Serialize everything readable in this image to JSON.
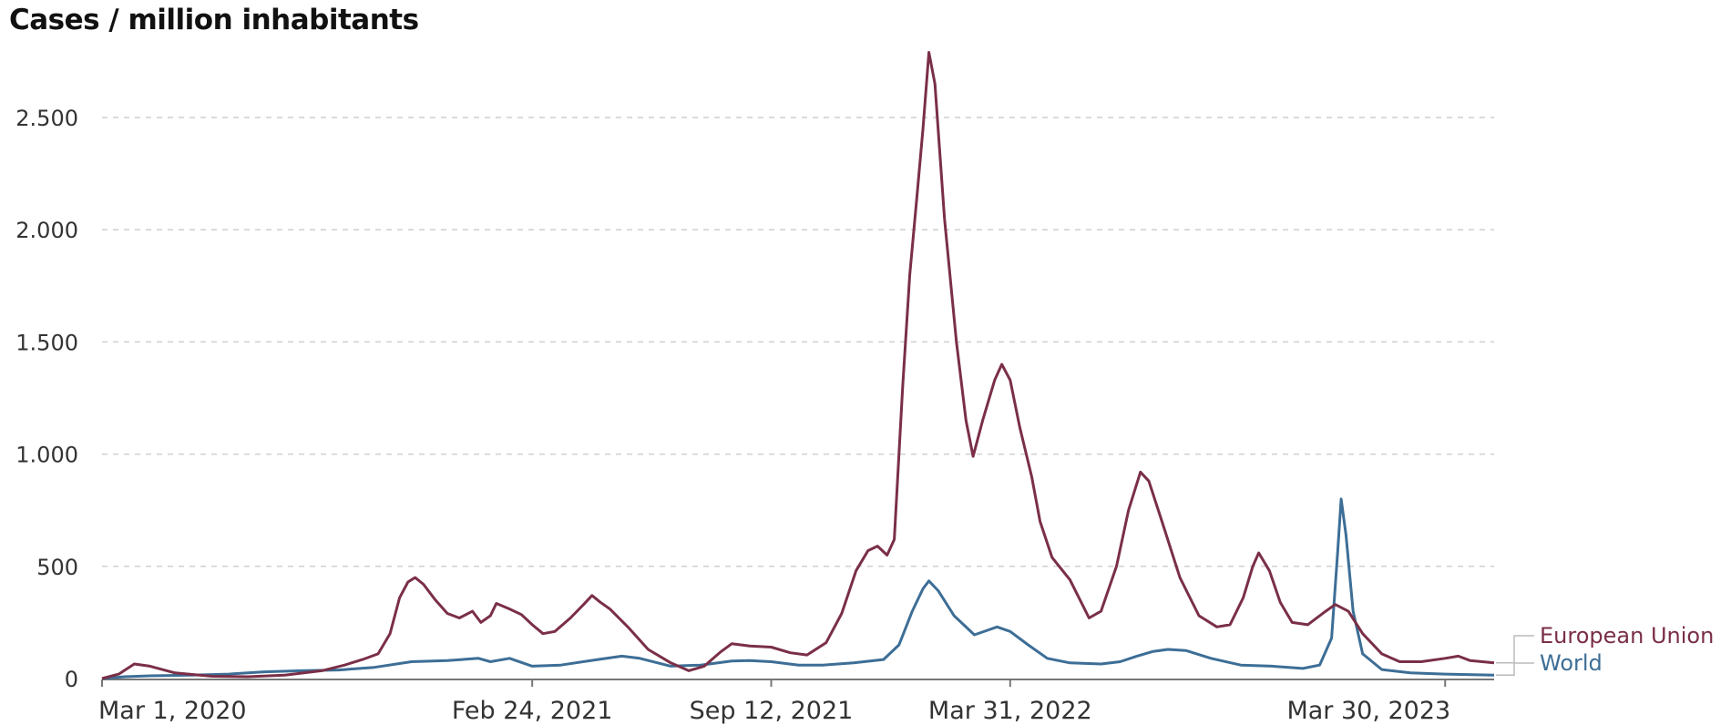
{
  "chart_data": {
    "type": "line",
    "title": "Cases / million inhabitants",
    "xlabel": "",
    "ylabel": "",
    "ylim": [
      0,
      2900
    ],
    "yticks": [
      0,
      500,
      1000,
      1500,
      2000,
      2500
    ],
    "ytick_labels": [
      "0",
      "500",
      "1.000",
      "1.500",
      "2.000",
      "2.500"
    ],
    "xlim": [
      "2020-03-01",
      "2023-05-10"
    ],
    "xticks": [
      "2020-03-01",
      "2021-02-24",
      "2021-09-12",
      "2022-03-31",
      "2023-03-30"
    ],
    "xtick_labels": [
      "Mar 1, 2020",
      "Feb 24, 2021",
      "Sep 12, 2021",
      "Mar 31, 2022",
      "Mar 30, 2023"
    ],
    "grid": "horizontal dashed",
    "legend": "right, end of lines",
    "series": [
      {
        "name": "European Union",
        "color": "#7a2f47",
        "points": [
          [
            "2020-03-01",
            0
          ],
          [
            "2020-03-15",
            20
          ],
          [
            "2020-03-28",
            65
          ],
          [
            "2020-04-10",
            55
          ],
          [
            "2020-05-01",
            25
          ],
          [
            "2020-06-01",
            10
          ],
          [
            "2020-07-01",
            8
          ],
          [
            "2020-08-01",
            15
          ],
          [
            "2020-09-01",
            35
          ],
          [
            "2020-09-20",
            60
          ],
          [
            "2020-10-05",
            85
          ],
          [
            "2020-10-18",
            110
          ],
          [
            "2020-10-28",
            200
          ],
          [
            "2020-11-05",
            360
          ],
          [
            "2020-11-12",
            430
          ],
          [
            "2020-11-18",
            450
          ],
          [
            "2020-11-25",
            420
          ],
          [
            "2020-12-05",
            350
          ],
          [
            "2020-12-15",
            290
          ],
          [
            "2020-12-25",
            270
          ],
          [
            "2021-01-05",
            300
          ],
          [
            "2021-01-12",
            250
          ],
          [
            "2021-01-20",
            280
          ],
          [
            "2021-01-25",
            335
          ],
          [
            "2021-02-05",
            310
          ],
          [
            "2021-02-15",
            285
          ],
          [
            "2021-02-24",
            240
          ],
          [
            "2021-03-05",
            200
          ],
          [
            "2021-03-15",
            210
          ],
          [
            "2021-03-28",
            270
          ],
          [
            "2021-04-08",
            330
          ],
          [
            "2021-04-15",
            370
          ],
          [
            "2021-04-22",
            340
          ],
          [
            "2021-04-30",
            310
          ],
          [
            "2021-05-15",
            230
          ],
          [
            "2021-06-01",
            130
          ],
          [
            "2021-06-20",
            70
          ],
          [
            "2021-07-05",
            35
          ],
          [
            "2021-07-18",
            55
          ],
          [
            "2021-08-01",
            120
          ],
          [
            "2021-08-10",
            155
          ],
          [
            "2021-08-25",
            145
          ],
          [
            "2021-09-12",
            140
          ],
          [
            "2021-09-28",
            115
          ],
          [
            "2021-10-12",
            105
          ],
          [
            "2021-10-28",
            160
          ],
          [
            "2021-11-10",
            290
          ],
          [
            "2021-11-22",
            480
          ],
          [
            "2021-12-02",
            570
          ],
          [
            "2021-12-10",
            590
          ],
          [
            "2021-12-18",
            550
          ],
          [
            "2021-12-24",
            620
          ],
          [
            "2021-12-31",
            1300
          ],
          [
            "2022-01-06",
            1800
          ],
          [
            "2022-01-12",
            2150
          ],
          [
            "2022-01-17",
            2450
          ],
          [
            "2022-01-22",
            2790
          ],
          [
            "2022-01-27",
            2650
          ],
          [
            "2022-02-04",
            2050
          ],
          [
            "2022-02-14",
            1500
          ],
          [
            "2022-02-22",
            1150
          ],
          [
            "2022-02-28",
            990
          ],
          [
            "2022-03-08",
            1150
          ],
          [
            "2022-03-18",
            1330
          ],
          [
            "2022-03-24",
            1400
          ],
          [
            "2022-03-31",
            1330
          ],
          [
            "2022-04-08",
            1120
          ],
          [
            "2022-04-18",
            900
          ],
          [
            "2022-04-25",
            700
          ],
          [
            "2022-05-05",
            540
          ],
          [
            "2022-05-20",
            440
          ],
          [
            "2022-06-05",
            270
          ],
          [
            "2022-06-15",
            300
          ],
          [
            "2022-06-28",
            500
          ],
          [
            "2022-07-08",
            750
          ],
          [
            "2022-07-18",
            920
          ],
          [
            "2022-07-25",
            880
          ],
          [
            "2022-08-05",
            700
          ],
          [
            "2022-08-20",
            450
          ],
          [
            "2022-09-05",
            280
          ],
          [
            "2022-09-20",
            230
          ],
          [
            "2022-10-01",
            240
          ],
          [
            "2022-10-12",
            360
          ],
          [
            "2022-10-20",
            500
          ],
          [
            "2022-10-25",
            560
          ],
          [
            "2022-11-03",
            480
          ],
          [
            "2022-11-12",
            340
          ],
          [
            "2022-11-22",
            250
          ],
          [
            "2022-12-05",
            240
          ],
          [
            "2022-12-20",
            300
          ],
          [
            "2022-12-28",
            330
          ],
          [
            "2023-01-08",
            300
          ],
          [
            "2023-01-20",
            200
          ],
          [
            "2023-02-05",
            110
          ],
          [
            "2023-02-20",
            75
          ],
          [
            "2023-03-10",
            75
          ],
          [
            "2023-03-30",
            90
          ],
          [
            "2023-04-10",
            100
          ],
          [
            "2023-04-20",
            80
          ],
          [
            "2023-05-10",
            70
          ]
        ]
      },
      {
        "name": "World",
        "color": "#3d6e96",
        "points": [
          [
            "2020-03-01",
            0
          ],
          [
            "2020-03-20",
            8
          ],
          [
            "2020-04-10",
            12
          ],
          [
            "2020-05-15",
            15
          ],
          [
            "2020-06-15",
            20
          ],
          [
            "2020-07-15",
            30
          ],
          [
            "2020-08-15",
            35
          ],
          [
            "2020-09-15",
            38
          ],
          [
            "2020-10-15",
            50
          ],
          [
            "2020-11-15",
            75
          ],
          [
            "2020-12-15",
            80
          ],
          [
            "2021-01-10",
            90
          ],
          [
            "2021-01-20",
            75
          ],
          [
            "2021-02-05",
            90
          ],
          [
            "2021-02-24",
            55
          ],
          [
            "2021-03-20",
            60
          ],
          [
            "2021-04-20",
            85
          ],
          [
            "2021-05-10",
            100
          ],
          [
            "2021-05-25",
            90
          ],
          [
            "2021-06-20",
            55
          ],
          [
            "2021-07-15",
            60
          ],
          [
            "2021-08-10",
            78
          ],
          [
            "2021-08-25",
            80
          ],
          [
            "2021-09-12",
            75
          ],
          [
            "2021-10-05",
            60
          ],
          [
            "2021-10-25",
            60
          ],
          [
            "2021-11-20",
            70
          ],
          [
            "2021-12-15",
            85
          ],
          [
            "2021-12-28",
            150
          ],
          [
            "2022-01-08",
            300
          ],
          [
            "2022-01-17",
            400
          ],
          [
            "2022-01-22",
            435
          ],
          [
            "2022-01-30",
            390
          ],
          [
            "2022-02-12",
            280
          ],
          [
            "2022-03-01",
            195
          ],
          [
            "2022-03-12",
            215
          ],
          [
            "2022-03-20",
            230
          ],
          [
            "2022-03-31",
            210
          ],
          [
            "2022-04-15",
            150
          ],
          [
            "2022-05-01",
            90
          ],
          [
            "2022-05-20",
            70
          ],
          [
            "2022-06-15",
            65
          ],
          [
            "2022-07-01",
            75
          ],
          [
            "2022-07-15",
            100
          ],
          [
            "2022-07-28",
            120
          ],
          [
            "2022-08-10",
            130
          ],
          [
            "2022-08-25",
            125
          ],
          [
            "2022-09-15",
            90
          ],
          [
            "2022-10-10",
            60
          ],
          [
            "2022-11-05",
            55
          ],
          [
            "2022-12-01",
            45
          ],
          [
            "2022-12-15",
            60
          ],
          [
            "2022-12-25",
            180
          ],
          [
            "2022-12-30",
            560
          ],
          [
            "2023-01-02",
            800
          ],
          [
            "2023-01-06",
            640
          ],
          [
            "2023-01-12",
            300
          ],
          [
            "2023-01-20",
            110
          ],
          [
            "2023-02-05",
            40
          ],
          [
            "2023-03-01",
            25
          ],
          [
            "2023-03-30",
            20
          ],
          [
            "2023-05-10",
            15
          ]
        ]
      }
    ]
  }
}
